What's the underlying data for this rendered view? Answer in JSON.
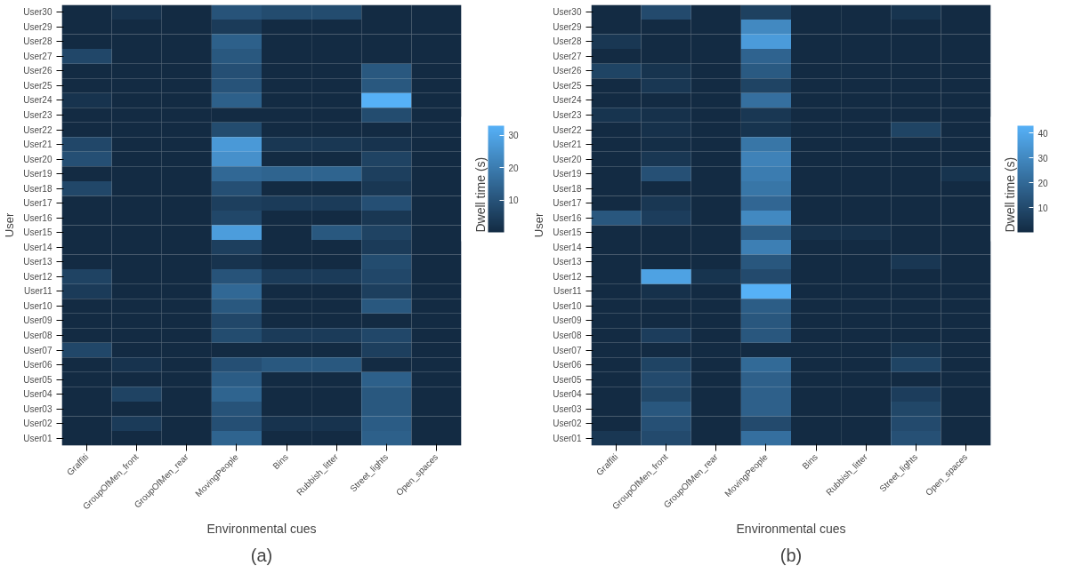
{
  "chart_data": [
    {
      "type": "heatmap",
      "xlabel": "Environmental cues",
      "ylabel": "User",
      "clabel": "Dwell time (s)",
      "annotations": [
        "(a)"
      ],
      "categories": [
        "Graffiti",
        "GroupOfMen_front",
        "GroupOfMen_rear",
        "MovingPeople",
        "Bins",
        "Rubbish_litter",
        "Street_lights",
        "Open_spaces"
      ],
      "y_categories": [
        "User30",
        "User29",
        "User28",
        "User27",
        "User26",
        "User25",
        "User24",
        "User23",
        "User22",
        "User21",
        "User20",
        "User19",
        "User18",
        "User17",
        "User16",
        "User15",
        "User14",
        "User13",
        "User12",
        "User11",
        "User10",
        "User09",
        "User08",
        "User07",
        "User06",
        "User05",
        "User04",
        "User03",
        "User02",
        "User01"
      ],
      "cells": [
        [
          0,
          2,
          0,
          10,
          8,
          8,
          0,
          0
        ],
        [
          0,
          0,
          0,
          4,
          0,
          0,
          0,
          0
        ],
        [
          0,
          0,
          0,
          13,
          0,
          0,
          0,
          0
        ],
        [
          7,
          0,
          0,
          11,
          0,
          0,
          0,
          0
        ],
        [
          0,
          0,
          0,
          9,
          0,
          0,
          11,
          0
        ],
        [
          0,
          0,
          0,
          10,
          0,
          0,
          11,
          0
        ],
        [
          2,
          0,
          0,
          13,
          0,
          0,
          33,
          0
        ],
        [
          0,
          0,
          0,
          0,
          0,
          0,
          8,
          0
        ],
        [
          0,
          0,
          0,
          8,
          0,
          0,
          0,
          0
        ],
        [
          7,
          0,
          0,
          27,
          3,
          3,
          2,
          0
        ],
        [
          9,
          0,
          0,
          25,
          0,
          0,
          6,
          0
        ],
        [
          0,
          0,
          0,
          15,
          14,
          14,
          5,
          0
        ],
        [
          7,
          0,
          0,
          9,
          0,
          0,
          3,
          0
        ],
        [
          0,
          0,
          0,
          5,
          4,
          4,
          9,
          0
        ],
        [
          0,
          0,
          0,
          7,
          0,
          0,
          3,
          0
        ],
        [
          0,
          0,
          0,
          28,
          0,
          11,
          6,
          0
        ],
        [
          0,
          0,
          0,
          5,
          0,
          0,
          4,
          0
        ],
        [
          0,
          0,
          0,
          2,
          0,
          0,
          8,
          0
        ],
        [
          6,
          0,
          0,
          10,
          4,
          4,
          7,
          0
        ],
        [
          4,
          0,
          0,
          15,
          0,
          0,
          5,
          0
        ],
        [
          0,
          0,
          0,
          11,
          0,
          0,
          11,
          0
        ],
        [
          0,
          0,
          0,
          7,
          0,
          0,
          0,
          0
        ],
        [
          0,
          0,
          0,
          8,
          4,
          4,
          7,
          0
        ],
        [
          7,
          0,
          0,
          0,
          0,
          0,
          5,
          0
        ],
        [
          0,
          2,
          0,
          9,
          11,
          11,
          0,
          0
        ],
        [
          0,
          0,
          0,
          12,
          0,
          0,
          13,
          0
        ],
        [
          0,
          6,
          0,
          14,
          0,
          0,
          11,
          0
        ],
        [
          0,
          0,
          0,
          10,
          0,
          0,
          11,
          0
        ],
        [
          0,
          4,
          0,
          9,
          2,
          2,
          12,
          0
        ],
        [
          0,
          0,
          0,
          14,
          0,
          0,
          13,
          0
        ]
      ],
      "clim": [
        0,
        33
      ],
      "cticks": [
        10,
        20,
        30
      ]
    },
    {
      "type": "heatmap",
      "xlabel": "Environmental cues",
      "ylabel": "User",
      "clabel": "Dwell time (s)",
      "annotations": [
        "(b)"
      ],
      "categories": [
        "Graffiti",
        "GroupOfMen_front",
        "GroupOfMen_rear",
        "MovingPeople",
        "Bins",
        "Rubbish_litter",
        "Street_lights",
        "Open_spaces"
      ],
      "y_categories": [
        "User30",
        "User29",
        "User28",
        "User27",
        "User26",
        "User25",
        "User24",
        "User23",
        "User22",
        "User21",
        "User20",
        "User19",
        "User18",
        "User17",
        "User16",
        "User15",
        "User14",
        "User13",
        "User12",
        "User11",
        "User10",
        "User09",
        "User08",
        "User07",
        "User06",
        "User05",
        "User04",
        "User03",
        "User02",
        "User01"
      ],
      "cells": [
        [
          0,
          10,
          0,
          7,
          0,
          0,
          3,
          0
        ],
        [
          0,
          0,
          0,
          30,
          0,
          0,
          0,
          0
        ],
        [
          4,
          0,
          0,
          36,
          0,
          0,
          0,
          0
        ],
        [
          0,
          0,
          0,
          18,
          0,
          0,
          0,
          0
        ],
        [
          8,
          3,
          0,
          15,
          0,
          0,
          0,
          0
        ],
        [
          0,
          4,
          0,
          8,
          0,
          0,
          0,
          0
        ],
        [
          0,
          0,
          0,
          22,
          0,
          0,
          0,
          0
        ],
        [
          3,
          2,
          0,
          4,
          0,
          0,
          0,
          0
        ],
        [
          0,
          2,
          0,
          3,
          0,
          0,
          8,
          0
        ],
        [
          0,
          1,
          0,
          24,
          0,
          0,
          0,
          0
        ],
        [
          0,
          4,
          0,
          28,
          0,
          0,
          0,
          0
        ],
        [
          0,
          12,
          0,
          26,
          0,
          0,
          0,
          3
        ],
        [
          0,
          0,
          0,
          24,
          0,
          0,
          0,
          0
        ],
        [
          0,
          4,
          0,
          19,
          0,
          0,
          0,
          0
        ],
        [
          14,
          6,
          0,
          30,
          0,
          0,
          0,
          0
        ],
        [
          0,
          0,
          0,
          16,
          2,
          2,
          0,
          0
        ],
        [
          0,
          0,
          0,
          27,
          0,
          0,
          0,
          0
        ],
        [
          0,
          0,
          0,
          14,
          0,
          0,
          4,
          0
        ],
        [
          0,
          38,
          3,
          10,
          0,
          0,
          0,
          0
        ],
        [
          0,
          2,
          0,
          43,
          0,
          0,
          0,
          0
        ],
        [
          0,
          0,
          0,
          16,
          0,
          0,
          0,
          0
        ],
        [
          0,
          0,
          0,
          14,
          0,
          0,
          0,
          0
        ],
        [
          0,
          6,
          0,
          14,
          0,
          0,
          0,
          0
        ],
        [
          0,
          0,
          0,
          0,
          0,
          0,
          3,
          0
        ],
        [
          0,
          8,
          0,
          20,
          0,
          0,
          8,
          0
        ],
        [
          0,
          10,
          0,
          17,
          0,
          0,
          0,
          0
        ],
        [
          0,
          9,
          0,
          17,
          0,
          0,
          6,
          0
        ],
        [
          0,
          14,
          0,
          17,
          0,
          0,
          9,
          0
        ],
        [
          0,
          12,
          0,
          10,
          0,
          0,
          10,
          0
        ],
        [
          4,
          10,
          0,
          22,
          0,
          0,
          12,
          0
        ]
      ],
      "clim": [
        0,
        43
      ],
      "cticks": [
        10,
        20,
        30,
        40
      ]
    }
  ]
}
